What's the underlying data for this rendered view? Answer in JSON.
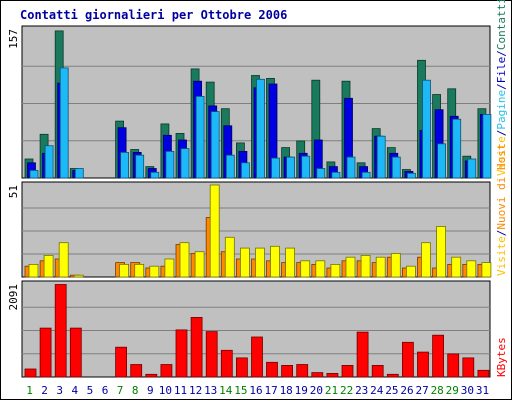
{
  "chart_data": {
    "type": "bar",
    "title": "Contatti giornalieri per Ottobre 2006",
    "categories": [
      "1",
      "2",
      "3",
      "4",
      "5",
      "6",
      "7",
      "8",
      "9",
      "10",
      "11",
      "12",
      "13",
      "14",
      "15",
      "16",
      "17",
      "18",
      "19",
      "20",
      "21",
      "22",
      "23",
      "24",
      "25",
      "26",
      "27",
      "28",
      "29",
      "30",
      "31"
    ],
    "weekend_days": [
      "1",
      "7",
      "8",
      "14",
      "15",
      "21",
      "22",
      "28",
      "29"
    ],
    "panels": [
      {
        "id": "contatti",
        "max_label": "157",
        "ylim": [
          0,
          157
        ],
        "series": [
          {
            "name": "Contatti",
            "color": "#1a7a5e",
            "values": [
              20,
              46,
              155,
              10,
              0,
              0,
              60,
              30,
              12,
              57,
              47,
              115,
              101,
              73,
              37,
              108,
              105,
              32,
              39,
              103,
              17,
              102,
              16,
              52,
              32,
              9,
              124,
              88,
              94,
              23,
              73
            ]
          },
          {
            "name": "Visite",
            "color": "#0000e0",
            "values": [
              16,
              26,
              100,
              8,
              0,
              0,
              53,
              27,
              10,
              45,
              40,
              102,
              76,
              55,
              28,
              95,
              99,
              22,
              26,
              40,
              12,
              84,
              12,
              44,
              26,
              7,
              50,
              72,
              65,
              18,
              67
            ]
          },
          {
            "name": "Pagine",
            "color": "#2cc0e8",
            "values": [
              0,
              0,
              0,
              0,
              0,
              0,
              0,
              0,
              0,
              0,
              0,
              0,
              0,
              0,
              0,
              0,
              0,
              0,
              0,
              0,
              0,
              0,
              0,
              0,
              0,
              0,
              0,
              0,
              0,
              0,
              0
            ]
          },
          {
            "name": "File",
            "color": "#1cb8f8",
            "values": [
              8,
              34,
              116,
              10,
              0,
              0,
              27,
              24,
              6,
              28,
              31,
              86,
              70,
              24,
              16,
              104,
              21,
              22,
              23,
              10,
              6,
              22,
              6,
              44,
              22,
              5,
              103,
              36,
              62,
              20,
              67
            ]
          }
        ]
      },
      {
        "id": "host",
        "max_label": "51",
        "ylim": [
          0,
          51
        ],
        "series": [
          {
            "name": "Nuovi di Host",
            "color": "#ff8800",
            "values": [
              6,
              9,
              10,
              1,
              0,
              0,
              8,
              8,
              5,
              6,
              18,
              13,
              33,
              14,
              10,
              10,
              9,
              8,
              8,
              7,
              5,
              9,
              9,
              8,
              11,
              5,
              11,
              5,
              7,
              7,
              7
            ]
          },
          {
            "name": "Visite",
            "color": "#ffff00",
            "values": [
              7,
              12,
              19,
              1,
              0,
              0,
              7,
              7,
              6,
              10,
              19,
              14,
              51,
              22,
              16,
              16,
              17,
              16,
              9,
              9,
              7,
              11,
              12,
              11,
              13,
              6,
              19,
              28,
              11,
              9,
              8
            ]
          }
        ]
      },
      {
        "id": "kbytes",
        "max_label": "2091",
        "ylim": [
          0,
          2091
        ],
        "series": [
          {
            "name": "KBytes",
            "color": "#ff0000",
            "values": [
              180,
              1100,
              2080,
              1100,
              0,
              0,
              670,
              280,
              60,
              280,
              1060,
              1340,
              1020,
              600,
              430,
              900,
              330,
              260,
              280,
              100,
              80,
              260,
              1010,
              260,
              60,
              780,
              560,
              940,
              520,
              430,
              150
            ]
          }
        ]
      }
    ],
    "legend_right": [
      {
        "text": "Contatti",
        "color": "#1a7a5e"
      },
      {
        "text": "/",
        "color": "#0000a0"
      },
      {
        "text": "File",
        "color": "#0000c0"
      },
      {
        "text": "/",
        "color": "#0000a0"
      },
      {
        "text": "Pagine",
        "color": "#2cc0e8"
      },
      {
        "text": "/",
        "color": "#0000a0"
      },
      {
        "text": "Visite",
        "color": "#ffc000"
      }
    ],
    "legend_host": [
      {
        "text": "Visite",
        "color": "#ffc000"
      },
      {
        "text": "/",
        "color": "#0000a0"
      },
      {
        "text": "Nuovi di Host",
        "color": "#ff8800"
      }
    ],
    "legend_kbytes": [
      {
        "text": "KBytes",
        "color": "#ff0000"
      }
    ],
    "colors": {
      "plot_bg": "#c0c0c0",
      "title": "#0000a0",
      "weekday_label": "#0000a0",
      "weekend_label": "#008000"
    }
  }
}
